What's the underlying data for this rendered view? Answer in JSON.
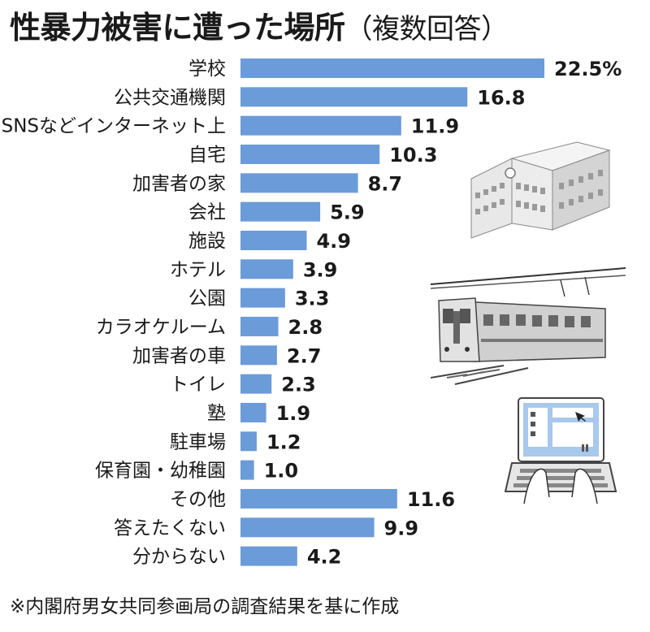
{
  "title": "性暴力被害に遭った場所",
  "subtitle": "（複数回答）",
  "note": "※内閣府男女共同参画局の調査結果を基に作成",
  "chart_data": {
    "type": "bar",
    "orientation": "horizontal",
    "categories": [
      "学校",
      "公共交通機関",
      "SNSなどインターネット上",
      "自宅",
      "加害者の家",
      "会社",
      "施設",
      "ホテル",
      "公園",
      "カラオケルーム",
      "加害者の車",
      "トイレ",
      "塾",
      "駐車場",
      "保育園・幼稚園",
      "その他",
      "答えたくない",
      "分からない"
    ],
    "values": [
      22.5,
      16.8,
      11.9,
      10.3,
      8.7,
      5.9,
      4.9,
      3.9,
      3.3,
      2.8,
      2.7,
      2.3,
      1.9,
      1.2,
      1.0,
      11.6,
      9.9,
      4.2
    ],
    "value_labels": [
      "22.5%",
      "16.8",
      "11.9",
      "10.3",
      "8.7",
      "5.9",
      "4.9",
      "3.9",
      "3.3",
      "2.8",
      "2.7",
      "2.3",
      "1.9",
      "1.2",
      "1.0",
      "11.6",
      "9.9",
      "4.2"
    ],
    "unit": "%",
    "bar_color": "#6b9bd8",
    "grid": false,
    "legend": "none"
  },
  "illustrations": [
    "school-building-icon",
    "train-icon",
    "laptop-icon"
  ]
}
